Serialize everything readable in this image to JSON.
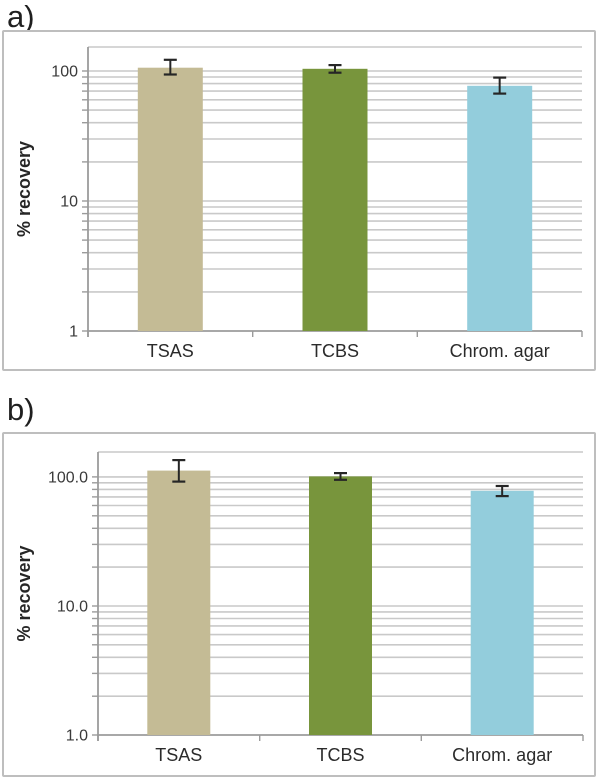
{
  "figure": {
    "description": "Two-panel log-scale bar chart figure comparing % recovery on three agar media",
    "background": "#ffffff"
  },
  "colors": {
    "frame_border": "#bebebe",
    "gridline": "#c9c9c9",
    "axis_line": "#9b9b9b",
    "error_bar": "#262626",
    "tick_text": "#3a3a3a",
    "category_text": "#2b2b2b",
    "axis_title_text": "#262626",
    "panel_label_text": "#1f1f1f",
    "bar_tan": "#c4bb95",
    "bar_green": "#78953c",
    "bar_blue": "#93cddc"
  },
  "chart_data": [
    {
      "panel_label": "a)",
      "type": "bar",
      "title": "",
      "xlabel": "",
      "ylabel": "% recovery",
      "yscale": "log",
      "ylim": [
        1,
        153
      ],
      "grid": true,
      "legend": "none",
      "categories": [
        "TSAS",
        "TCBS",
        "Chrom. agar"
      ],
      "values": [
        106,
        104,
        77
      ],
      "error_low": [
        94,
        97,
        67
      ],
      "error_high": [
        122,
        111,
        89
      ],
      "bar_colors": [
        "#c4bb95",
        "#78953c",
        "#93cddc"
      ],
      "yticks": [
        {
          "value": 100,
          "label": "100"
        },
        {
          "value": 10,
          "label": "10"
        },
        {
          "value": 1,
          "label": "1"
        }
      ],
      "gridline_values": [
        2,
        3,
        4,
        5,
        6,
        7,
        8,
        9,
        10,
        20,
        30,
        40,
        50,
        60,
        70,
        80,
        90,
        100
      ]
    },
    {
      "panel_label": "b)",
      "type": "bar",
      "title": "",
      "xlabel": "",
      "ylabel": "% recovery",
      "yscale": "log",
      "ylim": [
        1,
        156
      ],
      "grid": true,
      "legend": "none",
      "categories": [
        "TSAS",
        "TCBS",
        "Chrom. agar"
      ],
      "values": [
        112,
        101,
        78
      ],
      "error_low": [
        92,
        95,
        71
      ],
      "error_high": [
        135,
        107,
        85
      ],
      "bar_colors": [
        "#c4bb95",
        "#78953c",
        "#93cddc"
      ],
      "yticks": [
        {
          "value": 100,
          "label": "100.0"
        },
        {
          "value": 10,
          "label": "10.0"
        },
        {
          "value": 1,
          "label": "1.0"
        }
      ],
      "gridline_values": [
        2,
        3,
        4,
        5,
        6,
        7,
        8,
        9,
        10,
        20,
        30,
        40,
        50,
        60,
        70,
        80,
        90,
        100
      ]
    }
  ]
}
